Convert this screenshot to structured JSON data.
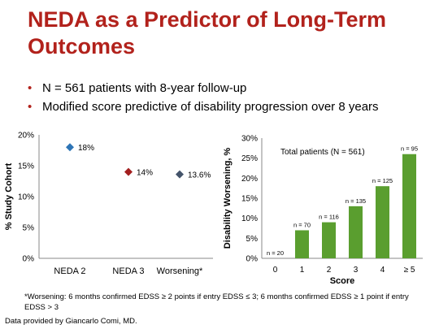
{
  "slide": {
    "title": "NEDA as a Predictor of Long-Term Outcomes",
    "bullets": [
      "N = 561 patients with 8-year follow-up",
      "Modified score predictive of disability progression over 8 years"
    ],
    "footnote": "*Worsening: 6 months confirmed EDSS ≥ 2 points if entry EDSS ≤ 3; 6 months confirmed EDSS ≥ 1 point if entry EDSS > 3",
    "credit": "Data provided by Giancarlo Comi, MD.",
    "accent_color": "#b2221c"
  },
  "chart_data": [
    {
      "type": "scatter",
      "ylabel": "% Study Cohort",
      "ylim": [
        0,
        20
      ],
      "yticks": [
        "0%",
        "5%",
        "10%",
        "15%",
        "20%"
      ],
      "categories": [
        "NEDA 2",
        "NEDA 3",
        "Worsening*"
      ],
      "values": [
        18,
        14,
        13.6
      ],
      "data_labels": [
        "18%",
        "14%",
        "13.6%"
      ],
      "colors": [
        "#2e75b6",
        "#a31f1f",
        "#44546a"
      ],
      "marker": "diamond",
      "grid": false
    },
    {
      "type": "bar",
      "xlabel": "Score",
      "ylabel": "Disability Worsening, %",
      "ylim": [
        0,
        30
      ],
      "yticks": [
        "0%",
        "5%",
        "10%",
        "15%",
        "20%",
        "25%",
        "30%"
      ],
      "annotation": "Total patients (N = 561)",
      "categories": [
        "0",
        "1",
        "2",
        "3",
        "4",
        "≥ 5"
      ],
      "values": [
        0,
        7,
        9,
        13,
        18,
        26
      ],
      "bar_labels": [
        "n = 20",
        "n = 70",
        "n = 116",
        "n = 135",
        "n = 125",
        "n = 95"
      ],
      "color": "#5a9e2f",
      "grid": false
    }
  ]
}
